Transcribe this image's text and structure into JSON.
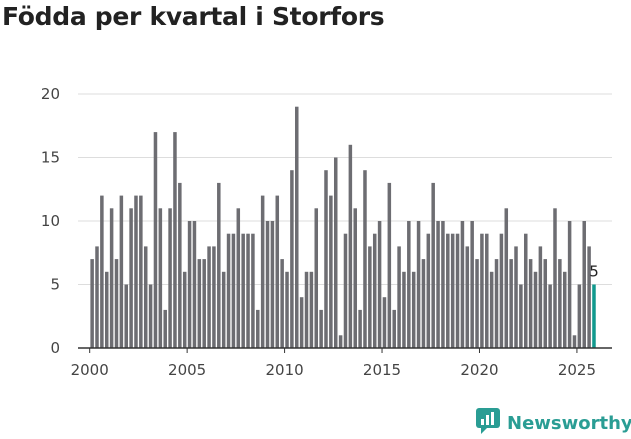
{
  "chart_data": {
    "type": "bar",
    "title": "Födda per kvartal i Storfors",
    "xlabel": "",
    "ylabel": "",
    "ylim": [
      0,
      20
    ],
    "xlim": [
      1999.4,
      2026.8
    ],
    "yticks": [
      0,
      5,
      10,
      15,
      20
    ],
    "xticks": [
      2000,
      2005,
      2010,
      2015,
      2020,
      2025
    ],
    "start_year": 2000,
    "periods_per_year": 4,
    "grid": true,
    "series": [
      {
        "name": "Födda",
        "values": [
          7,
          8,
          12,
          6,
          11,
          7,
          12,
          5,
          11,
          12,
          12,
          8,
          5,
          17,
          11,
          3,
          11,
          17,
          13,
          6,
          10,
          10,
          7,
          7,
          8,
          8,
          13,
          6,
          9,
          9,
          11,
          9,
          9,
          9,
          3,
          12,
          10,
          10,
          12,
          7,
          6,
          14,
          19,
          4,
          6,
          6,
          11,
          3,
          14,
          12,
          15,
          1,
          9,
          16,
          11,
          3,
          14,
          8,
          9,
          10,
          4,
          13,
          3,
          8,
          6,
          10,
          6,
          10,
          7,
          9,
          13,
          10,
          10,
          9,
          9,
          9,
          10,
          8,
          10,
          7,
          9,
          9,
          6,
          7,
          9,
          11,
          7,
          8,
          5,
          9,
          7,
          6,
          8,
          7,
          5,
          11,
          7,
          6,
          10,
          1,
          5,
          10,
          8,
          5
        ]
      }
    ],
    "colors": {
      "bar": "#6d6d72",
      "highlight": "#11998e",
      "grid": "#dddddd",
      "axis": "#333333"
    },
    "highlight_last": true,
    "last_value_label": "5"
  },
  "brand": {
    "name": "Newsworthy",
    "icon": "bar-chart-speech-bubble-icon",
    "color": "#2a9d94"
  }
}
